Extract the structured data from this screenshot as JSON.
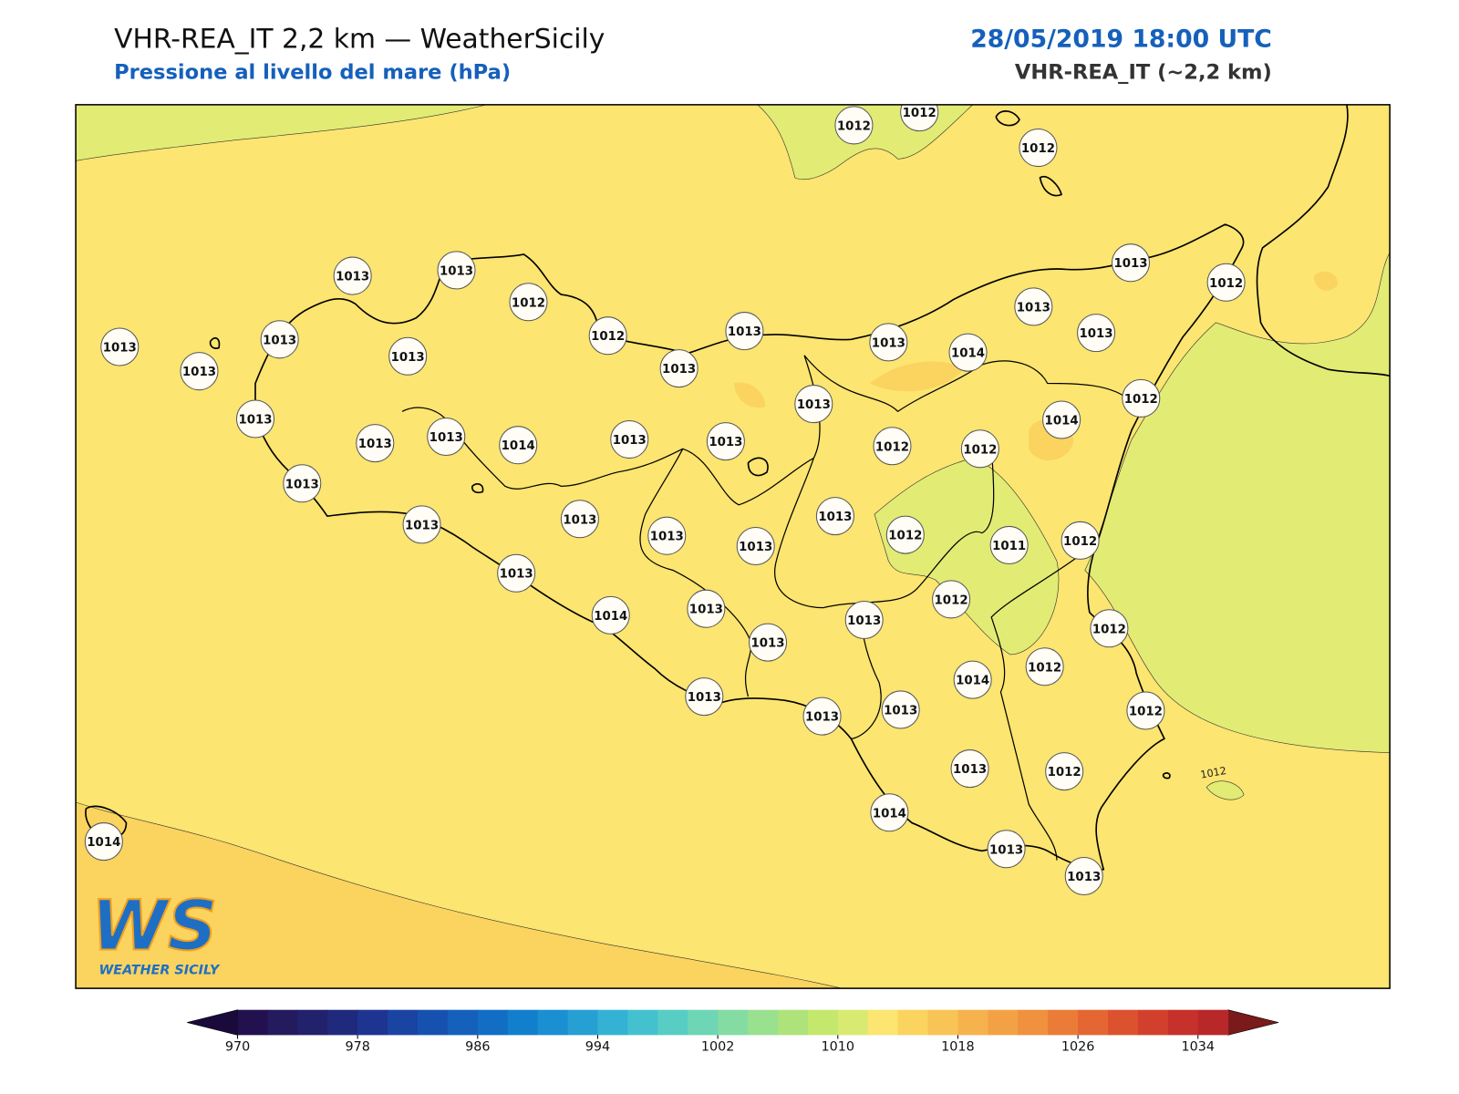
{
  "header": {
    "title": "VHR-REA_IT 2,2 km — WeatherSicily",
    "subtitle": "Pressione al livello del mare (hPa)",
    "datetime": "28/05/2019 18:00 UTC",
    "model": "VHR-REA_IT (~2,2 km)"
  },
  "stations": [
    1012,
    1012,
    1012,
    1013,
    1013,
    1012,
    1013,
    1013,
    1013,
    1013,
    1012,
    1013,
    1013,
    1013,
    1014,
    1013,
    1013,
    1013,
    1012,
    1013,
    1013,
    1013,
    1014,
    1013,
    1013,
    1013,
    1012,
    1012,
    1014,
    1012,
    1013,
    1013,
    1013,
    1013,
    1013,
    1013,
    1012,
    1011,
    1012,
    1013,
    1014,
    1013,
    1013,
    1013,
    1012,
    1012,
    1012,
    1014,
    1013,
    1013,
    1013,
    1012,
    1013,
    1012,
    1014,
    1013,
    1013,
    1014
  ],
  "contour_label": "1012",
  "logo": {
    "mark": "WS",
    "name": "WEATHER SICILY"
  },
  "colorbar": {
    "lim": [
      970,
      1036
    ],
    "ticks": [
      970,
      978,
      986,
      994,
      1002,
      1010,
      1018,
      1026,
      1034
    ],
    "colors": [
      "#23104f",
      "#241a5e",
      "#22216c",
      "#1f2a7c",
      "#1d3590",
      "#1a44a2",
      "#1751b0",
      "#1560bb",
      "#126ec5",
      "#117fcc",
      "#1a8fd1",
      "#269fd3",
      "#33b2d3",
      "#44c1cf",
      "#57cdc4",
      "#6ed6b4",
      "#84dca3",
      "#99e08f",
      "#aee37b",
      "#c4e76e",
      "#d9ea72",
      "#fce570",
      "#fbd35f",
      "#f8c456",
      "#f5b24d",
      "#f2a245",
      "#ef913e",
      "#ea7c37",
      "#e46632",
      "#dc522f",
      "#d2402d",
      "#c6312b",
      "#b82828"
    ],
    "under": "#1a0a3c",
    "over": "#7a1a1a"
  }
}
